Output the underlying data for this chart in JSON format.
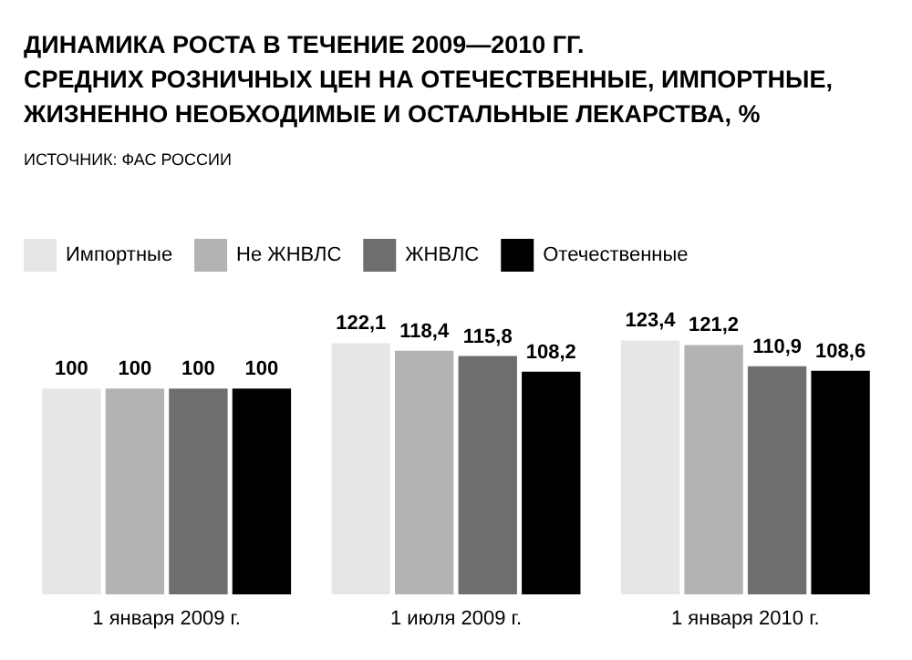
{
  "chart_data": {
    "type": "bar",
    "title": "ДИНАМИКА РОСТА В ТЕЧЕНИЕ 2009—2010 ГГ.\nСРЕДНИХ РОЗНИЧНЫХ ЦЕН НА ОТЕЧЕСТВЕННЫЕ, ИМПОРТНЫЕ,\nЖИЗНЕННО НЕОБХОДИМЫЕ И ОСТАЛЬНЫЕ ЛЕКАРСТВА, %",
    "annotations": [
      "ИСТОЧНИК: ФАС РОССИИ"
    ],
    "categories": [
      "1 января 2009 г.",
      "1 июля 2009 г.",
      "1 января 2010 г."
    ],
    "series": [
      {
        "name": "Импортные",
        "color": "#e6e6e6",
        "values": [
          100,
          122.1,
          123.4
        ],
        "value_labels": [
          "100",
          "122,1",
          "123,4"
        ]
      },
      {
        "name": "Не ЖНВЛС",
        "color": "#b3b3b3",
        "values": [
          100,
          118.4,
          121.2
        ],
        "value_labels": [
          "100",
          "118,4",
          "121,2"
        ]
      },
      {
        "name": "ЖНВЛС",
        "color": "#6e6e6e",
        "values": [
          100,
          115.8,
          110.9
        ],
        "value_labels": [
          "100",
          "115,8",
          "110,9"
        ]
      },
      {
        "name": "Отечественные",
        "color": "#000000",
        "values": [
          100,
          108.2,
          108.6
        ],
        "value_labels": [
          "100",
          "108,2",
          "108,6"
        ]
      }
    ],
    "legend": "top left"
  }
}
